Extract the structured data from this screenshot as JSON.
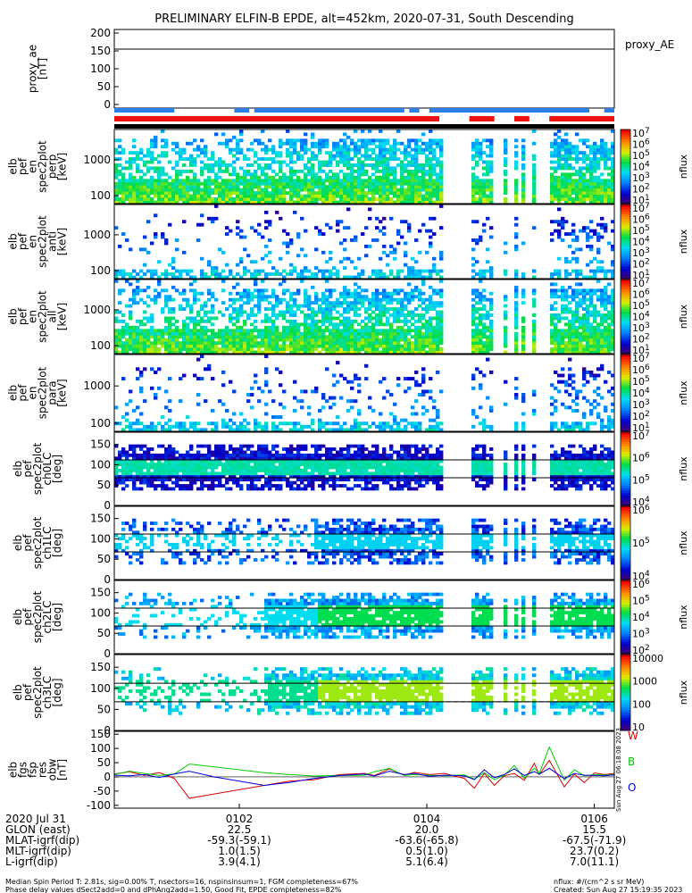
{
  "title": "PRELIMINARY ELFIN-B EPDE, alt=452km, 2020-07-31, South Descending",
  "colorbar_unit": "nflux",
  "colors": {
    "status_blue": "#2b7fe6",
    "status_red": "#ee1111",
    "status_black": "#000000",
    "b_total": "#00cc00",
    "b_dir_red": "#dd0000",
    "b_dir_blue": "#0000dd"
  },
  "chart_data": [
    {
      "type": "line",
      "name": "proxy_ae",
      "ylabel": [
        "proxy_ae",
        "[nT]"
      ],
      "ylim": [
        -10,
        210
      ],
      "yticks": [
        "200",
        "150",
        "100",
        "50",
        "0"
      ],
      "series_label": "proxy_AE",
      "series": [
        {
          "name": "proxy_AE",
          "values": [
            155,
            155
          ]
        }
      ]
    },
    {
      "type": "heatmap",
      "name": "spec-perp",
      "ylabel": [
        "elb",
        "pef",
        "en",
        "spec2plot",
        "perp",
        "[keV]"
      ],
      "yscale": "log",
      "ylim": [
        60,
        7000
      ],
      "yticks": [
        "1000",
        "100"
      ],
      "colorbar": {
        "scale": "log",
        "min": "10",
        "max": "10^7",
        "ticks": [
          "10^7",
          "10^6",
          "10^5",
          "10^4",
          "10^3",
          "10^2",
          "10^1"
        ],
        "unit": "nflux"
      }
    },
    {
      "type": "heatmap",
      "name": "spec-anti",
      "ylabel": [
        "elb",
        "pef",
        "en",
        "spec2plot",
        "anti",
        "[keV]"
      ],
      "yscale": "log",
      "ylim": [
        60,
        7000
      ],
      "yticks": [
        "1000",
        "100"
      ],
      "colorbar": {
        "scale": "log",
        "min": "10",
        "max": "10^7",
        "ticks": [
          "10^7",
          "10^6",
          "10^5",
          "10^4",
          "10^3",
          "10^2",
          "10^1"
        ],
        "unit": "nflux"
      }
    },
    {
      "type": "heatmap",
      "name": "spec-all",
      "ylabel": [
        "elb",
        "pef",
        "en",
        "spec2plot",
        "all",
        "[keV]"
      ],
      "yscale": "log",
      "ylim": [
        60,
        7000
      ],
      "yticks": [
        "1000",
        "100"
      ],
      "colorbar": {
        "scale": "log",
        "min": "10",
        "max": "10^7",
        "ticks": [
          "10^7",
          "10^6",
          "10^5",
          "10^4",
          "10^3",
          "10^2",
          "10^1"
        ],
        "unit": "nflux"
      }
    },
    {
      "type": "heatmap",
      "name": "spec-para",
      "ylabel": [
        "elb",
        "pef",
        "en",
        "spec2plot",
        "para",
        "[keV]"
      ],
      "yscale": "log",
      "ylim": [
        60,
        7000
      ],
      "yticks": [
        "1000",
        "100"
      ],
      "colorbar": {
        "scale": "log",
        "min": "10",
        "max": "10^7",
        "ticks": [
          "10^7",
          "10^6",
          "10^5",
          "10^4",
          "10^3",
          "10^2",
          "10^1"
        ],
        "unit": "nflux"
      }
    },
    {
      "type": "heatmap",
      "name": "pa-ch0",
      "ylabel": [
        "elb",
        "pef",
        "spec2plot",
        "ch0LC",
        "[deg]"
      ],
      "ylim": [
        0,
        180
      ],
      "yticks": [
        "150",
        "100",
        "50",
        "0"
      ],
      "solid_lines": [
        112,
        68
      ],
      "dashed_line": 68,
      "colorbar": {
        "scale": "log",
        "min": "10^3",
        "max": "10^7",
        "ticks": [
          "10^7",
          "10^6",
          "10^5",
          "10^4"
        ],
        "unit": "nflux"
      }
    },
    {
      "type": "heatmap",
      "name": "pa-ch1",
      "ylabel": [
        "elb",
        "pef",
        "spec2plot",
        "ch1LC",
        "[deg]"
      ],
      "ylim": [
        0,
        180
      ],
      "yticks": [
        "150",
        "100",
        "50",
        "0"
      ],
      "solid_lines": [
        112,
        68
      ],
      "dashed_line": 68,
      "colorbar": {
        "scale": "log",
        "min": "10^3",
        "max": "10^6",
        "ticks": [
          "10^6",
          "10^5",
          "10^4"
        ],
        "unit": "nflux"
      }
    },
    {
      "type": "heatmap",
      "name": "pa-ch2",
      "ylabel": [
        "elb",
        "pef",
        "spec2plot",
        "ch2LC",
        "[deg]"
      ],
      "ylim": [
        0,
        180
      ],
      "yticks": [
        "150",
        "100",
        "50",
        "0"
      ],
      "solid_lines": [
        112,
        68
      ],
      "dashed_line": 68,
      "colorbar": {
        "scale": "log",
        "min": "10^2",
        "max": "10^6",
        "ticks": [
          "10^6",
          "10^5",
          "10^4",
          "10^3",
          "10^2"
        ],
        "unit": "nflux"
      }
    },
    {
      "type": "heatmap",
      "name": "pa-ch3",
      "ylabel": [
        "elb",
        "pef",
        "spec2plot",
        "ch3LC",
        "[deg]"
      ],
      "ylim": [
        0,
        180
      ],
      "yticks": [
        "150",
        "100",
        "50",
        "0"
      ],
      "solid_lines": [
        112,
        68
      ],
      "dashed_line": 68,
      "colorbar": {
        "scale": "log",
        "min": "10",
        "max": "10000",
        "ticks": [
          "10000",
          "1000",
          "100",
          "10"
        ],
        "unit": "nflux"
      }
    },
    {
      "type": "line",
      "name": "fgs-residuals",
      "ylabel": [
        "elb",
        "fgs",
        "fsp",
        "res",
        "obw",
        "[nT]"
      ],
      "ylim": [
        -110,
        160
      ],
      "yticks": [
        "150",
        "100",
        "50",
        "0",
        "-50",
        "-100"
      ],
      "side_labels": [
        "W",
        "B",
        "O"
      ],
      "side_text": "Sun Aug 27 06:18:08 2023",
      "series": [
        {
          "name": "W",
          "x": [
            0,
            0.03,
            0.06,
            0.09,
            0.12,
            0.15,
            0.2,
            0.25,
            0.3,
            0.35,
            0.4,
            0.45,
            0.5,
            0.52,
            0.55,
            0.58,
            0.6,
            0.63,
            0.66,
            0.7,
            0.72,
            0.74,
            0.76,
            0.78,
            0.8,
            0.82,
            0.84,
            0.85,
            0.87,
            0.9,
            0.92,
            0.94,
            0.96,
            0.98,
            1.0
          ],
          "values": [
            10,
            18,
            5,
            15,
            -5,
            -75,
            -60,
            -45,
            -30,
            -15,
            -10,
            8,
            12,
            5,
            28,
            6,
            16,
            8,
            12,
            -5,
            -40,
            12,
            -30,
            4,
            12,
            -12,
            48,
            8,
            58,
            -35,
            10,
            -20,
            14,
            8,
            12
          ]
        },
        {
          "name": "B",
          "x": [
            0,
            0.03,
            0.06,
            0.09,
            0.12,
            0.15,
            0.2,
            0.25,
            0.3,
            0.35,
            0.4,
            0.45,
            0.5,
            0.52,
            0.55,
            0.58,
            0.6,
            0.63,
            0.66,
            0.7,
            0.72,
            0.74,
            0.76,
            0.78,
            0.8,
            0.82,
            0.84,
            0.85,
            0.87,
            0.9,
            0.92,
            0.94,
            0.96,
            0.98,
            1.0
          ],
          "values": [
            8,
            20,
            12,
            5,
            10,
            45,
            35,
            25,
            15,
            8,
            3,
            5,
            6,
            18,
            30,
            5,
            8,
            6,
            4,
            7,
            -8,
            15,
            -10,
            6,
            40,
            -5,
            30,
            12,
            105,
            -12,
            25,
            4,
            8,
            6,
            9
          ]
        },
        {
          "name": "O",
          "x": [
            0,
            0.03,
            0.06,
            0.09,
            0.12,
            0.15,
            0.2,
            0.25,
            0.3,
            0.35,
            0.4,
            0.45,
            0.5,
            0.52,
            0.55,
            0.58,
            0.6,
            0.63,
            0.66,
            0.7,
            0.72,
            0.74,
            0.76,
            0.78,
            0.8,
            0.82,
            0.84,
            0.85,
            0.87,
            0.9,
            0.92,
            0.94,
            0.96,
            0.98,
            1.0
          ],
          "values": [
            6,
            4,
            8,
            -2,
            10,
            20,
            0,
            -15,
            -30,
            -20,
            -5,
            5,
            10,
            3,
            20,
            8,
            12,
            2,
            6,
            4,
            -10,
            25,
            -3,
            8,
            28,
            5,
            18,
            10,
            30,
            -6,
            12,
            6,
            5,
            4,
            7
          ]
        }
      ]
    }
  ],
  "status_bars": {
    "blue": [
      [
        0,
        0.12
      ],
      [
        0.24,
        0.27
      ],
      [
        0.28,
        0.58
      ],
      [
        0.59,
        0.61
      ],
      [
        0.63,
        0.95
      ],
      [
        0.98,
        1.0
      ]
    ],
    "red": [
      [
        0,
        0.65
      ],
      [
        0.71,
        0.76
      ],
      [
        0.8,
        0.83
      ],
      [
        0.87,
        1.0
      ]
    ],
    "black": [
      [
        0,
        1.0
      ]
    ]
  },
  "xaxis": {
    "ticks": [
      "0102",
      "0104",
      "0106"
    ],
    "row_labels": [
      "2020 Jul 31",
      "GLON (east)",
      "MLAT-igrf(dip)",
      "MLT-igrf(dip)",
      "L-igrf(dip)"
    ],
    "rows": [
      [
        "0102",
        "0104",
        "0106"
      ],
      [
        "22.5",
        "20.0",
        "15.5"
      ],
      [
        "-59.3(-59.1)",
        "-63.6(-65.8)",
        "-67.5(-71.9)"
      ],
      [
        "1.0(1.5)",
        "0.5(1.0)",
        "23.7(0.2)"
      ],
      [
        "3.9(4.1)",
        "5.1(6.4)",
        "7.0(11.1)"
      ]
    ]
  },
  "footer": {
    "line1": "Median Spin Period T: 2.81s, sig=0.00% T, nsectors=16, nspinsinsum=1, FGM completeness=67%",
    "line2": "Phase delay values dSect2add=0 and dPhAng2add=1.50, Good Fit, EPDE completeness=82%",
    "right1": "nflux: #/(cm^2 s sr MeV)",
    "right2": "Created: Sun Aug 27 15:19:35 2023"
  }
}
